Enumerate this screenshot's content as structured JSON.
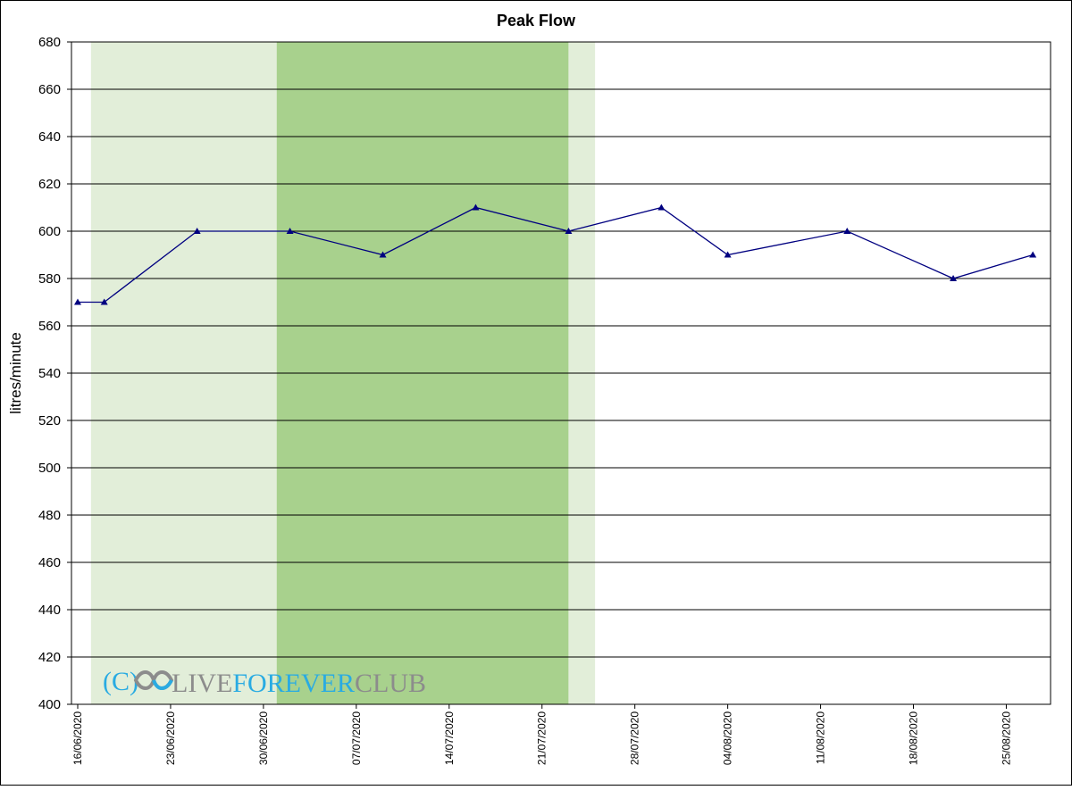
{
  "chart_data": {
    "type": "line",
    "title": "Peak Flow",
    "ylabel": "litres/minute",
    "xlabel": "",
    "ylim": [
      400,
      680
    ],
    "ytick_step": 20,
    "xlim": [
      "2020-06-16",
      "2020-08-28"
    ],
    "grid": "horizontal",
    "x_ticks": [
      "16/06/2020",
      "23/06/2020",
      "30/06/2020",
      "07/07/2020",
      "14/07/2020",
      "21/07/2020",
      "28/07/2020",
      "04/08/2020",
      "11/08/2020",
      "18/08/2020",
      "25/08/2020"
    ],
    "bands": [
      {
        "start": "2020-06-17",
        "end": "2020-07-01",
        "color": "#e2eed9"
      },
      {
        "start": "2020-07-01",
        "end": "2020-07-23",
        "color": "#a8d18d"
      },
      {
        "start": "2020-07-23",
        "end": "2020-07-25",
        "color": "#e2eed9"
      }
    ],
    "series": [
      {
        "color": "#000080",
        "marker": "triangle",
        "x": [
          "2020-06-16",
          "2020-06-18",
          "2020-06-25",
          "2020-07-02",
          "2020-07-09",
          "2020-07-16",
          "2020-07-23",
          "2020-07-30",
          "2020-08-04",
          "2020-08-13",
          "2020-08-21",
          "2020-08-27"
        ],
        "values": [
          570,
          570,
          600,
          600,
          590,
          610,
          600,
          610,
          590,
          600,
          580,
          590
        ]
      }
    ]
  },
  "watermark": {
    "prefix": "(C)",
    "word1": "LIVE",
    "word2": "FOREVER",
    "word3": "CLUB",
    "prefix_color": "#29abe2",
    "gray_color": "#8c8c8c",
    "blue_color": "#29abe2"
  }
}
